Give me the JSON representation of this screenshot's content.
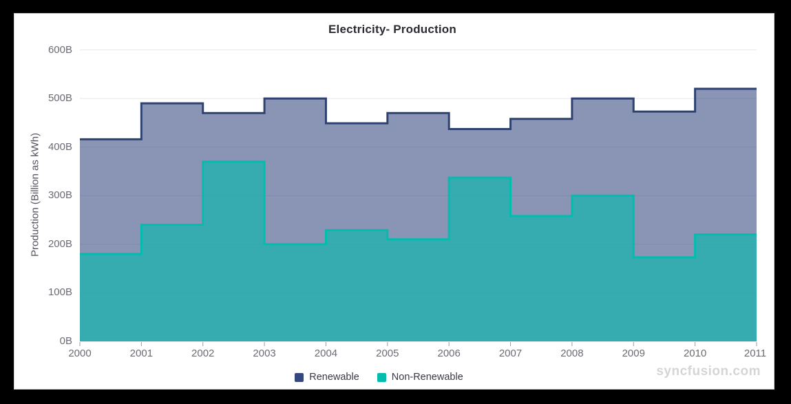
{
  "chart": {
    "title": "Electricity- Production",
    "watermark": "syncfusion.com",
    "y_axis": {
      "title": "Production (Billion as kWh)",
      "tick_labels": [
        "0B",
        "100B",
        "200B",
        "300B",
        "400B",
        "500B",
        "600B"
      ]
    },
    "x_axis": {
      "tick_labels": [
        "2000",
        "2001",
        "2002",
        "2003",
        "2004",
        "2005",
        "2006",
        "2007",
        "2008",
        "2009",
        "2010",
        "2011"
      ]
    },
    "legend_items": [
      {
        "label": "Renewable",
        "color": "#36477D"
      },
      {
        "label": "Non-Renewable",
        "color": "#00BDAE"
      }
    ],
    "colors": {
      "frame_background": "#000000",
      "card_background": "#ffffff",
      "gridline": "#e8e8eb",
      "baseline": "#d8d8dd",
      "tick": "#9b9ba3",
      "axis_label_text": "#6b6b75",
      "title_text": "#2b2b33",
      "watermark_text": "#d5d5d8"
    }
  },
  "chart_data": {
    "type": "area",
    "subtype": "step-area",
    "title": "Electricity- Production",
    "xlabel": "",
    "ylabel": "Production (Billion as kWh)",
    "x": [
      2000,
      2001,
      2002,
      2003,
      2004,
      2005,
      2006,
      2007,
      2008,
      2009,
      2010,
      2011
    ],
    "series": [
      {
        "name": "Renewable",
        "values": [
          416,
          490,
          470,
          500,
          449,
          470,
          437,
          458,
          500,
          473,
          520,
          520
        ],
        "border_color": "#2E4272",
        "fill_color": "rgba(54,71,125,0.58)",
        "legend_color": "#36477D"
      },
      {
        "name": "Non-Renewable",
        "values": [
          180,
          240,
          370,
          200,
          229,
          210,
          337,
          258,
          300,
          173,
          220,
          220
        ],
        "border_color": "#00BDAE",
        "fill_color": "rgba(0,189,174,0.6)",
        "legend_color": "#00BDAE"
      }
    ],
    "ylim": [
      0,
      600
    ],
    "y_interval": 100,
    "xlim": [
      2000,
      2011
    ],
    "grid": true,
    "legend_position": "bottom"
  }
}
